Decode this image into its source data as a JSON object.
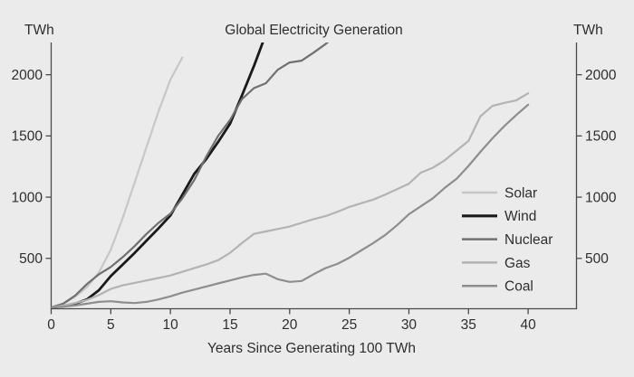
{
  "chart_data": {
    "type": "line",
    "title": "Global Electricity Generation",
    "xlabel": "Years Since Generating 100 TWh",
    "left_axis_unit": "TWh",
    "right_axis_unit": "TWh",
    "x_ticks": [
      0,
      5,
      10,
      15,
      20,
      25,
      30,
      35,
      40
    ],
    "y_ticks": [
      500,
      1000,
      1500,
      2000
    ],
    "xlim": [
      0,
      44
    ],
    "ylim": [
      88,
      2264
    ],
    "grid": false,
    "legend_position": "inside-right",
    "colors": {
      "background": "#ebebeb",
      "axis": "#4a4a4a",
      "text": "#2e2e2e"
    },
    "series": [
      {
        "name": "Solar",
        "color": "#c7c7c7",
        "width": 2.2,
        "x_start_year": 0,
        "values": [
          100,
          130,
          185,
          265,
          385,
          570,
          830,
          1120,
          1410,
          1700,
          1960,
          2140
        ]
      },
      {
        "name": "Wind",
        "color": "#1a1a1a",
        "width": 2.8,
        "x_start_year": 0,
        "values": [
          100,
          110,
          130,
          165,
          240,
          355,
          450,
          545,
          645,
          745,
          850,
          1020,
          1190,
          1310,
          1450,
          1600,
          1830,
          2070,
          2330
        ]
      },
      {
        "name": "Nuclear",
        "color": "#707070",
        "width": 2.2,
        "x_start_year": 0,
        "values": [
          100,
          130,
          195,
          290,
          370,
          430,
          510,
          600,
          700,
          790,
          865,
          990,
          1140,
          1330,
          1500,
          1630,
          1800,
          1890,
          1930,
          2040,
          2100,
          2115,
          2180,
          2250,
          2330
        ]
      },
      {
        "name": "Gas",
        "color": "#b3b3b3",
        "width": 2.2,
        "x_start_year": 0,
        "values": [
          100,
          115,
          135,
          160,
          200,
          250,
          280,
          300,
          320,
          340,
          360,
          390,
          420,
          450,
          485,
          545,
          625,
          700,
          720,
          740,
          760,
          790,
          820,
          845,
          880,
          920,
          950,
          980,
          1020,
          1065,
          1110,
          1200,
          1240,
          1300,
          1380,
          1460,
          1660,
          1745,
          1770,
          1790,
          1848
        ]
      },
      {
        "name": "Coal",
        "color": "#8e8e8e",
        "width": 2.2,
        "x_start_year": 0,
        "values": [
          100,
          105,
          115,
          130,
          145,
          150,
          140,
          135,
          145,
          165,
          190,
          220,
          245,
          270,
          295,
          320,
          345,
          365,
          375,
          330,
          308,
          315,
          370,
          420,
          455,
          505,
          565,
          625,
          690,
          770,
          860,
          925,
          990,
          1075,
          1150,
          1255,
          1370,
          1480,
          1580,
          1670,
          1755
        ]
      }
    ]
  }
}
